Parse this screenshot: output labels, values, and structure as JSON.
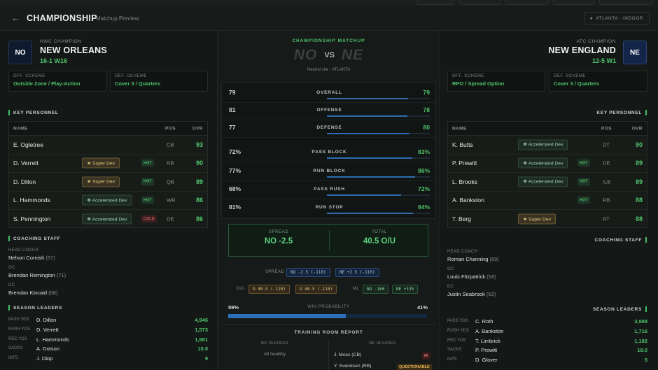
{
  "header": {
    "back_icon": "arrow-left-icon",
    "title": "Championship",
    "subtitle": "Matchup Preview",
    "venue": "ATLANTA · INDOOR",
    "venue_icon": "location-pin-icon"
  },
  "left_team": {
    "abbr": "NO",
    "badge_color": "#0f1a2e",
    "conference": "NWC CHAMPION",
    "name": "NEW ORLEANS",
    "record": "16-1 W16",
    "off_scheme_label": "OFF. SCHEME",
    "off_scheme": "Outside Zone / Play-Action",
    "def_scheme_label": "DEF. SCHEME",
    "def_scheme": "Cover 3 / Quarters",
    "personnel_title": "KEY PERSONNEL",
    "columns": {
      "name": "NAME",
      "pos": "POS",
      "ovr": "OVR"
    },
    "players": [
      {
        "name": "E. Ogletree",
        "dev": "",
        "dev_type": "",
        "tag": "",
        "pos": "CB",
        "ovr": "93"
      },
      {
        "name": "D. Verrett",
        "dev": "★ Super Dev",
        "dev_type": "sd",
        "tag": "HOT",
        "pos": "RB",
        "ovr": "90"
      },
      {
        "name": "D. Dillon",
        "dev": "★ Super Dev",
        "dev_type": "sd",
        "tag": "HOT",
        "pos": "QB",
        "ovr": "89"
      },
      {
        "name": "L. Hammonds",
        "dev": "❖ Accelerated Dev",
        "dev_type": "ad",
        "tag": "HOT",
        "pos": "WR",
        "ovr": "86"
      },
      {
        "name": "S. Pennington",
        "dev": "❖ Accelerated Dev",
        "dev_type": "ad",
        "tag": "COLD",
        "pos": "DE",
        "ovr": "86"
      }
    ],
    "staff_title": "COACHING STAFF",
    "staff": [
      {
        "role": "HEAD COACH",
        "name": "Nelson Cornish",
        "ovr": "(67)"
      },
      {
        "role": "OC",
        "name": "Brendan Remington",
        "ovr": "(71)"
      },
      {
        "role": "DC",
        "name": "Brendan Kincaid",
        "ovr": "(68)"
      }
    ],
    "leaders_title": "SEASON LEADERS",
    "leaders": [
      {
        "cat": "PASS YDS",
        "name": "D. Dillon",
        "value": "4,946"
      },
      {
        "cat": "RUSH YDS",
        "name": "D. Verrett",
        "value": "1,573"
      },
      {
        "cat": "REC YDS",
        "name": "L. Hammonds",
        "value": "1,981"
      },
      {
        "cat": "SACKS",
        "name": "A. Dotson",
        "value": "10.0"
      },
      {
        "cat": "INTS",
        "name": "J. Diop",
        "value": "9"
      }
    ]
  },
  "right_team": {
    "abbr": "NE",
    "badge_color": "#13264a",
    "conference": "ATC CHAMPION",
    "name": "NEW ENGLAND",
    "record": "12-5 W1",
    "off_scheme_label": "OFF. SCHEME",
    "off_scheme": "RPO / Spread Option",
    "def_scheme_label": "DEF. SCHEME",
    "def_scheme": "Cover 3 / Quarters",
    "personnel_title": "KEY PERSONNEL",
    "columns": {
      "name": "NAME",
      "pos": "POS",
      "ovr": "OVR"
    },
    "players": [
      {
        "name": "K. Butts",
        "dev": "❖ Accelerated Dev",
        "dev_type": "ad",
        "tag": "",
        "pos": "DT",
        "ovr": "90"
      },
      {
        "name": "P. Prewitt",
        "dev": "❖ Accelerated Dev",
        "dev_type": "ad",
        "tag": "HOT",
        "pos": "DE",
        "ovr": "89"
      },
      {
        "name": "L. Brooks",
        "dev": "❖ Accelerated Dev",
        "dev_type": "ad",
        "tag": "HOT",
        "pos": "ILB",
        "ovr": "89"
      },
      {
        "name": "A. Bankston",
        "dev": "",
        "dev_type": "",
        "tag": "HOT",
        "pos": "RB",
        "ovr": "88"
      },
      {
        "name": "T. Berg",
        "dev": "★ Super Dev",
        "dev_type": "sd",
        "tag": "",
        "pos": "RT",
        "ovr": "88"
      }
    ],
    "staff_title": "COACHING STAFF",
    "staff": [
      {
        "role": "HEAD COACH",
        "name": "Roman Channing",
        "ovr": "(69)"
      },
      {
        "role": "OC",
        "name": "Louis Fitzpatrick",
        "ovr": "(58)"
      },
      {
        "role": "DC",
        "name": "Justin Seabrook",
        "ovr": "(63)"
      }
    ],
    "leaders_title": "SEASON LEADERS",
    "leaders": [
      {
        "cat": "PASS YDS",
        "name": "C. Roth",
        "value": "3,988"
      },
      {
        "cat": "RUSH YDS",
        "name": "A. Bankston",
        "value": "1,716"
      },
      {
        "cat": "REC YDS",
        "name": "T. Limbrick",
        "value": "1,182"
      },
      {
        "cat": "SACKS",
        "name": "P. Prewitt",
        "value": "18.0"
      },
      {
        "cat": "INTS",
        "name": "D. Glover",
        "value": "5"
      }
    ]
  },
  "matchup": {
    "title": "CHAMPIONSHIP MATCHUP",
    "left_abbr": "NO",
    "vs": "VS",
    "right_abbr": "NE",
    "site": "Neutral site · ATLANTA",
    "ratings": [
      {
        "label": "OVERALL",
        "left": "79",
        "right": "79",
        "right_pct": 79
      },
      {
        "label": "OFFENSE",
        "left": "81",
        "right": "78",
        "right_pct": 78
      },
      {
        "label": "DEFENSE",
        "left": "77",
        "right": "80",
        "right_pct": 80
      },
      {
        "label": "PASS BLOCK",
        "left": "72%",
        "right": "83%",
        "right_pct": 83
      },
      {
        "label": "RUN BLOCK",
        "left": "77%",
        "right": "86%",
        "right_pct": 86
      },
      {
        "label": "PASS RUSH",
        "left": "68%",
        "right": "72%",
        "right_pct": 72
      },
      {
        "label": "RUN STOP",
        "left": "81%",
        "right": "84%",
        "right_pct": 84
      }
    ],
    "spread_label": "SPREAD",
    "spread_value": "NO -2.5",
    "total_label": "TOTAL",
    "total_value": "40.5 O/U",
    "lines": {
      "spread_label": "SPREAD",
      "spread_no": "NO -2.5 (-110)",
      "spread_ne": "NE +2.5 (-110)",
      "ou_label": "O/U",
      "over": "O 40.5 (-110)",
      "under": "U 40.5 (-110)",
      "ml_label": "ML",
      "ml_no": "NO -160",
      "ml_ne": "NE +135"
    },
    "win_prob_label": "WIN PROBABILITY",
    "win_prob_left": "59%",
    "win_prob_right": "41%",
    "win_prob_left_value": 59,
    "training_title": "TRAINING ROOM REPORT",
    "no_injuries_label": "NO INJURIES",
    "no_injuries_text": "All healthy",
    "ne_injuries_label": "NE INJURIES",
    "ne_injuries": [
      {
        "name": "J. Moss (CB)",
        "status": "IR",
        "status_type": "ir"
      },
      {
        "name": "Y. Svendsen (RB)",
        "status": "QUESTIONABLE",
        "status_type": "q"
      }
    ]
  },
  "colors": {
    "accent_green": "#4fc46d",
    "accent_blue": "#2f6cae",
    "background": "#141816"
  }
}
